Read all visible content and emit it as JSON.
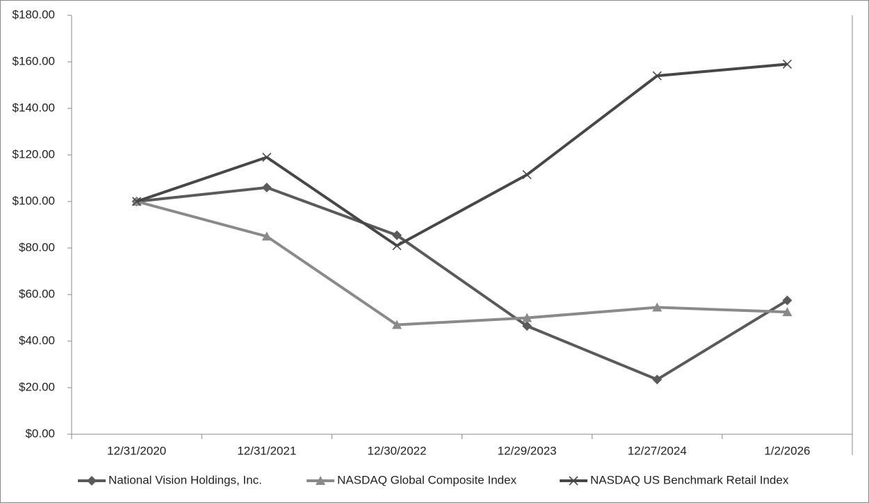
{
  "chart_data": {
    "type": "line",
    "categories": [
      "12/31/2020",
      "12/31/2021",
      "12/30/2022",
      "12/29/2023",
      "12/27/2024",
      "1/2/2026"
    ],
    "series": [
      {
        "name": "National Vision Holdings, Inc.",
        "color": "#5a5a5a",
        "marker": "diamond",
        "values": [
          100,
          106,
          85.5,
          46.5,
          23.5,
          57.5
        ]
      },
      {
        "name": "NASDAQ Global Composite Index",
        "color": "#8a8a8a",
        "marker": "triangle",
        "values": [
          100,
          85,
          47,
          50,
          54.5,
          52.5
        ]
      },
      {
        "name": "NASDAQ US Benchmark Retail Index",
        "color": "#474747",
        "marker": "x",
        "values": [
          100,
          119,
          81,
          111.5,
          154,
          159
        ]
      }
    ],
    "ylim": [
      0,
      180
    ],
    "yticks": [
      {
        "value": 0,
        "label": "$0.00"
      },
      {
        "value": 20,
        "label": "$20.00"
      },
      {
        "value": 40,
        "label": "$40.00"
      },
      {
        "value": 60,
        "label": "$60.00"
      },
      {
        "value": 80,
        "label": "$80.00"
      },
      {
        "value": 100,
        "label": "$100.00"
      },
      {
        "value": 120,
        "label": "$120.00"
      },
      {
        "value": 140,
        "label": "$140.00"
      },
      {
        "value": 160,
        "label": "$160.00"
      },
      {
        "value": 180,
        "label": "$180.00"
      }
    ],
    "legend": "bottom",
    "grid": false
  }
}
